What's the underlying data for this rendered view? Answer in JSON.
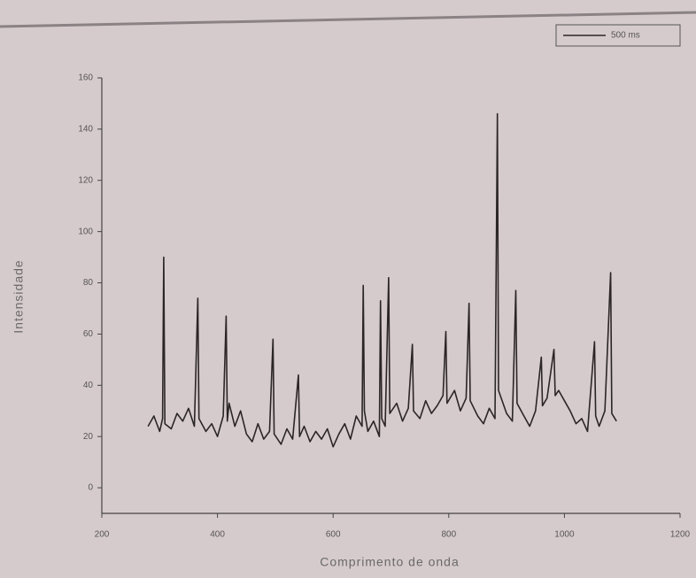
{
  "chart_data": {
    "type": "line",
    "x_label": "Comprimento de onda",
    "y_label": "Intensidade",
    "xlim": [
      200,
      1200
    ],
    "ylim": [
      -10,
      160
    ],
    "xticks": [
      200,
      400,
      600,
      800,
      1000,
      1200
    ],
    "yticks": [
      0,
      20,
      40,
      60,
      80,
      100,
      120,
      140,
      160
    ],
    "legend": "top-right",
    "series": [
      {
        "name": "500 ms",
        "color": "#2b2626",
        "x": [
          280,
          290,
          300,
          305,
          307,
          309,
          320,
          330,
          340,
          350,
          360,
          366,
          368,
          380,
          390,
          400,
          410,
          415,
          417,
          420,
          430,
          440,
          450,
          460,
          470,
          480,
          490,
          496,
          498,
          510,
          520,
          530,
          540,
          542,
          550,
          560,
          570,
          580,
          590,
          600,
          610,
          620,
          630,
          640,
          650,
          652,
          654,
          660,
          670,
          680,
          682,
          684,
          690,
          696,
          698,
          710,
          720,
          730,
          737,
          739,
          750,
          760,
          770,
          780,
          790,
          795,
          797,
          810,
          820,
          830,
          835,
          837,
          850,
          860,
          870,
          880,
          884,
          886,
          900,
          910,
          916,
          918,
          930,
          940,
          950,
          960,
          962,
          970,
          982,
          984,
          990,
          1000,
          1010,
          1020,
          1030,
          1040,
          1052,
          1054,
          1060,
          1070,
          1080,
          1082,
          1090
        ],
        "values": [
          24,
          28,
          22,
          27,
          90,
          25,
          23,
          29,
          26,
          31,
          24,
          74,
          27,
          22,
          25,
          20,
          28,
          67,
          26,
          33,
          24,
          30,
          21,
          18,
          25,
          19,
          22,
          58,
          21,
          17,
          23,
          19,
          44,
          20,
          24,
          18,
          22,
          19,
          23,
          16,
          21,
          25,
          19,
          28,
          24,
          79,
          30,
          22,
          26,
          20,
          73,
          27,
          24,
          82,
          29,
          33,
          26,
          31,
          56,
          30,
          27,
          34,
          29,
          32,
          36,
          61,
          33,
          38,
          30,
          35,
          72,
          34,
          28,
          25,
          31,
          27,
          146,
          38,
          29,
          26,
          77,
          33,
          28,
          24,
          30,
          51,
          32,
          35,
          54,
          36,
          38,
          34,
          30,
          25,
          27,
          22,
          57,
          28,
          24,
          30,
          84,
          29,
          26
        ]
      }
    ]
  }
}
